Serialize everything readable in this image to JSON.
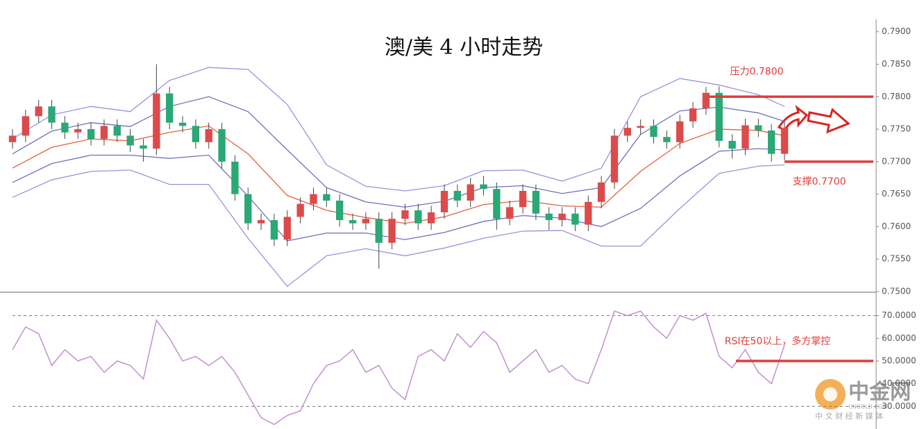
{
  "chart_data": [
    {
      "type": "candlestick",
      "title": "澳/美 4 小时走势",
      "xlim": [
        0,
        59
      ],
      "ylim": [
        0.75,
        0.792
      ],
      "yticks": [
        {
          "value": 0.75,
          "label": "0.7500"
        },
        {
          "value": 0.755,
          "label": "0.7550"
        },
        {
          "value": 0.76,
          "label": "0.7600"
        },
        {
          "value": 0.765,
          "label": "0.7650"
        },
        {
          "value": 0.77,
          "label": "0.7700"
        },
        {
          "value": 0.775,
          "label": "0.7750"
        },
        {
          "value": 0.78,
          "label": "0.7800"
        },
        {
          "value": 0.785,
          "label": "0.7850"
        },
        {
          "value": 0.79,
          "label": "0.7900"
        }
      ],
      "up_color": "#dc4b4b",
      "down_color": "#2aa876",
      "x": [
        0,
        1,
        2,
        3,
        4,
        5,
        6,
        7,
        8,
        9,
        10,
        11,
        12,
        13,
        14,
        15,
        16,
        17,
        18,
        19,
        20,
        21,
        22,
        23,
        24,
        25,
        26,
        27,
        28,
        29,
        30,
        31,
        32,
        33,
        34,
        35,
        36,
        37,
        38,
        39,
        40,
        41,
        42,
        43,
        44,
        45,
        46,
        47,
        48,
        49,
        50,
        51,
        52,
        53,
        54,
        55,
        56,
        57,
        58,
        59
      ],
      "open": [
        0.773,
        0.774,
        0.777,
        0.7785,
        0.776,
        0.7745,
        0.775,
        0.7735,
        0.7755,
        0.774,
        0.7725,
        0.772,
        0.7805,
        0.776,
        0.7755,
        0.773,
        0.775,
        0.77,
        0.765,
        0.7605,
        0.761,
        0.758,
        0.7615,
        0.7635,
        0.765,
        0.764,
        0.761,
        0.7605,
        0.7612,
        0.7575,
        0.7612,
        0.7625,
        0.7605,
        0.7622,
        0.7655,
        0.764,
        0.7665,
        0.7658,
        0.7612,
        0.763,
        0.7655,
        0.762,
        0.761,
        0.762,
        0.7603,
        0.7638,
        0.7668,
        0.774,
        0.7752,
        0.7755,
        0.7738,
        0.773,
        0.7762,
        0.7782,
        0.7806,
        0.7732,
        0.772,
        0.7756,
        0.7748,
        0.7712
      ],
      "high": [
        0.775,
        0.778,
        0.7795,
        0.7795,
        0.777,
        0.776,
        0.776,
        0.7765,
        0.7765,
        0.775,
        0.7735,
        0.785,
        0.7815,
        0.777,
        0.7765,
        0.776,
        0.776,
        0.771,
        0.766,
        0.762,
        0.762,
        0.7625,
        0.7645,
        0.766,
        0.766,
        0.765,
        0.762,
        0.7622,
        0.7622,
        0.7622,
        0.7635,
        0.7635,
        0.7632,
        0.7665,
        0.7665,
        0.7675,
        0.7678,
        0.7668,
        0.764,
        0.7665,
        0.7665,
        0.763,
        0.763,
        0.763,
        0.7648,
        0.7678,
        0.775,
        0.7762,
        0.7765,
        0.7765,
        0.7748,
        0.7772,
        0.7792,
        0.7815,
        0.7816,
        0.7742,
        0.7766,
        0.7766,
        0.7758,
        0.7762
      ],
      "low": [
        0.772,
        0.773,
        0.776,
        0.775,
        0.7735,
        0.7735,
        0.7725,
        0.7725,
        0.773,
        0.7715,
        0.77,
        0.771,
        0.775,
        0.7745,
        0.772,
        0.772,
        0.769,
        0.764,
        0.7595,
        0.7595,
        0.757,
        0.757,
        0.7605,
        0.7625,
        0.763,
        0.76,
        0.7595,
        0.7595,
        0.7535,
        0.7565,
        0.7602,
        0.7595,
        0.7595,
        0.7612,
        0.763,
        0.763,
        0.7648,
        0.7595,
        0.7602,
        0.762,
        0.761,
        0.7595,
        0.76,
        0.7593,
        0.7593,
        0.7628,
        0.7658,
        0.773,
        0.7742,
        0.7728,
        0.772,
        0.772,
        0.7752,
        0.7772,
        0.7722,
        0.7705,
        0.771,
        0.7738,
        0.77,
        0.7702
      ],
      "close": [
        0.774,
        0.777,
        0.7785,
        0.776,
        0.7745,
        0.775,
        0.7735,
        0.7755,
        0.774,
        0.7725,
        0.772,
        0.7805,
        0.776,
        0.7755,
        0.773,
        0.775,
        0.77,
        0.765,
        0.7605,
        0.761,
        0.758,
        0.7615,
        0.7635,
        0.765,
        0.764,
        0.761,
        0.7605,
        0.7612,
        0.7575,
        0.7612,
        0.7625,
        0.7605,
        0.7622,
        0.7655,
        0.764,
        0.7665,
        0.7658,
        0.7612,
        0.763,
        0.7655,
        0.762,
        0.761,
        0.762,
        0.7603,
        0.7638,
        0.7668,
        0.774,
        0.7752,
        0.7755,
        0.7738,
        0.773,
        0.7762,
        0.7782,
        0.7806,
        0.7732,
        0.772,
        0.7756,
        0.7748,
        0.7712,
        0.7752
      ],
      "overlays": [
        {
          "color": "#9d90dc",
          "x": [
            0,
            3,
            6,
            9,
            12,
            15,
            18,
            21,
            24,
            27,
            30,
            33,
            36,
            39,
            42,
            45,
            48,
            51,
            54,
            57,
            59
          ],
          "values": [
            0.7735,
            0.7772,
            0.7785,
            0.7777,
            0.7825,
            0.7845,
            0.7842,
            0.7788,
            0.7695,
            0.7662,
            0.7655,
            0.7663,
            0.7686,
            0.7687,
            0.767,
            0.769,
            0.78,
            0.7828,
            0.7818,
            0.7803,
            0.7785
          ]
        },
        {
          "color": "#6b72b8",
          "x": [
            0,
            3,
            6,
            9,
            12,
            15,
            18,
            21,
            24,
            27,
            30,
            33,
            36,
            39,
            42,
            45,
            48,
            51,
            54,
            57,
            59
          ],
          "values": [
            0.7712,
            0.7747,
            0.776,
            0.7754,
            0.7785,
            0.78,
            0.7777,
            0.7718,
            0.766,
            0.7638,
            0.763,
            0.7639,
            0.766,
            0.7663,
            0.7651,
            0.766,
            0.7742,
            0.7778,
            0.7784,
            0.7775,
            0.7762
          ]
        },
        {
          "color": "#e2603c",
          "x": [
            0,
            3,
            6,
            9,
            12,
            15,
            18,
            21,
            24,
            27,
            30,
            33,
            36,
            39,
            42,
            45,
            48,
            51,
            54,
            57,
            59
          ],
          "values": [
            0.769,
            0.7722,
            0.7735,
            0.7732,
            0.7745,
            0.7755,
            0.7712,
            0.7648,
            0.7625,
            0.7614,
            0.7605,
            0.7615,
            0.7634,
            0.764,
            0.7632,
            0.763,
            0.7685,
            0.7728,
            0.775,
            0.7748,
            0.774
          ]
        },
        {
          "color": "#6b72b8",
          "x": [
            0,
            3,
            6,
            9,
            12,
            15,
            18,
            21,
            24,
            27,
            30,
            33,
            36,
            39,
            42,
            45,
            48,
            51,
            54,
            57,
            59
          ],
          "values": [
            0.7668,
            0.7697,
            0.771,
            0.771,
            0.7705,
            0.771,
            0.7647,
            0.7578,
            0.759,
            0.759,
            0.758,
            0.7591,
            0.7608,
            0.7617,
            0.7613,
            0.76,
            0.7628,
            0.7678,
            0.7716,
            0.772,
            0.7718
          ]
        },
        {
          "color": "#9d90dc",
          "x": [
            0,
            3,
            6,
            9,
            12,
            15,
            18,
            21,
            24,
            27,
            30,
            33,
            36,
            39,
            42,
            45,
            48,
            51,
            54,
            57,
            59
          ],
          "values": [
            0.7645,
            0.7672,
            0.7685,
            0.7687,
            0.7665,
            0.7665,
            0.7582,
            0.7508,
            0.7555,
            0.7566,
            0.7555,
            0.7567,
            0.7582,
            0.7593,
            0.7594,
            0.757,
            0.757,
            0.7628,
            0.7682,
            0.7693,
            0.7695
          ]
        }
      ],
      "levels": [
        {
          "label": "压力0.7800",
          "value": 0.78,
          "color": "#e03c3c"
        },
        {
          "label": "支撑0.7700",
          "value": 0.77,
          "color": "#e03c3c"
        }
      ]
    },
    {
      "type": "line",
      "xlim": [
        0,
        59
      ],
      "ylim": [
        20,
        80
      ],
      "yticks": [
        {
          "value": 30,
          "label": "30.0000"
        },
        {
          "value": 40,
          "label": "40.0000"
        },
        {
          "value": 50,
          "label": "50.0000"
        },
        {
          "value": 60,
          "label": "60.0000"
        },
        {
          "value": 70,
          "label": "70.0000"
        }
      ],
      "dashed_grid": [
        30,
        70
      ],
      "color": "#c48fd0",
      "x": [
        0,
        1,
        2,
        3,
        4,
        5,
        6,
        7,
        8,
        9,
        10,
        11,
        12,
        13,
        14,
        15,
        16,
        17,
        18,
        19,
        20,
        21,
        22,
        23,
        24,
        25,
        26,
        27,
        28,
        29,
        30,
        31,
        32,
        33,
        34,
        35,
        36,
        37,
        38,
        39,
        40,
        41,
        42,
        43,
        44,
        45,
        46,
        47,
        48,
        49,
        50,
        51,
        52,
        53,
        54,
        55,
        56,
        57,
        58,
        59
      ],
      "values": [
        55,
        65,
        62,
        48,
        55,
        50,
        52,
        45,
        50,
        48,
        42,
        68,
        60,
        50,
        52,
        48,
        52,
        45,
        35,
        25,
        22,
        26,
        28,
        40,
        48,
        50,
        55,
        45,
        48,
        38,
        33,
        52,
        55,
        50,
        62,
        56,
        63,
        58,
        45,
        50,
        55,
        45,
        48,
        42,
        40,
        55,
        72,
        70,
        72,
        65,
        60,
        70,
        68,
        71,
        52,
        47,
        55,
        45,
        40,
        57
      ],
      "levels": [
        {
          "label": "RSI在50以上，多方掌控",
          "value": 50,
          "color": "#e03c3c"
        }
      ]
    }
  ],
  "watermark": {
    "brand": "中金网",
    "site": "CNGOLD.COM",
    "slogan": "中 文 财 经 新 媒 体"
  }
}
